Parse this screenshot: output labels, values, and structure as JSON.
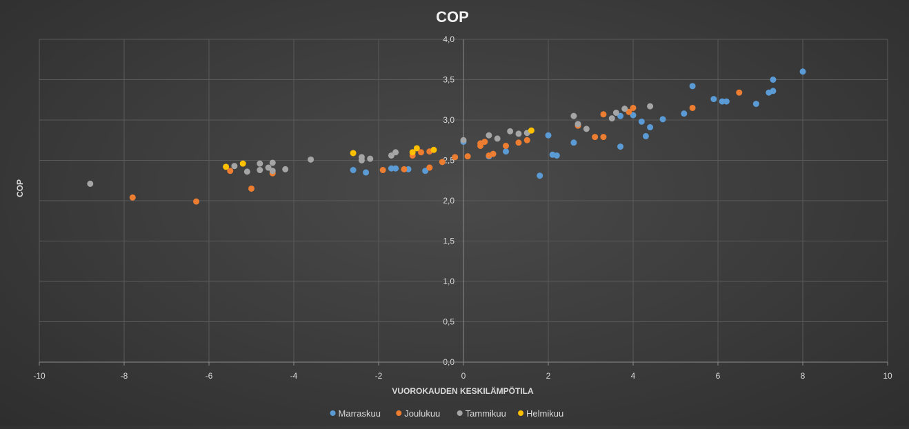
{
  "chart_data": {
    "type": "scatter",
    "title": "COP",
    "xlabel": "VUOROKAUDEN KESKILÄMPÖTILA",
    "ylabel": "COP",
    "xlim": [
      -10,
      10
    ],
    "ylim": [
      0,
      4
    ],
    "x_ticks": [
      "-10",
      "-8",
      "-6",
      "-4",
      "-2",
      "0",
      "2",
      "4",
      "6",
      "8",
      "10"
    ],
    "y_ticks": [
      "0,0",
      "0,5",
      "1,0",
      "1,5",
      "2,0",
      "2,5",
      "3,0",
      "3,5",
      "4,0"
    ],
    "grid": true,
    "legend_position": "bottom",
    "series": [
      {
        "name": "Marraskuu",
        "color": "#5b9bd5",
        "points": [
          [
            -2.6,
            2.38
          ],
          [
            -2.3,
            2.35
          ],
          [
            -1.7,
            2.4
          ],
          [
            -1.6,
            2.4
          ],
          [
            -1.3,
            2.39
          ],
          [
            -0.9,
            2.37
          ],
          [
            0.0,
            2.73
          ],
          [
            0.6,
            2.55
          ],
          [
            1.0,
            2.61
          ],
          [
            1.8,
            2.31
          ],
          [
            2.0,
            2.81
          ],
          [
            2.1,
            2.57
          ],
          [
            2.2,
            2.56
          ],
          [
            2.6,
            2.72
          ],
          [
            3.7,
            3.05
          ],
          [
            3.7,
            2.67
          ],
          [
            4.0,
            3.06
          ],
          [
            4.2,
            2.98
          ],
          [
            4.3,
            2.8
          ],
          [
            4.4,
            2.91
          ],
          [
            4.7,
            3.01
          ],
          [
            5.2,
            3.08
          ],
          [
            5.4,
            3.42
          ],
          [
            5.9,
            3.26
          ],
          [
            6.1,
            3.23
          ],
          [
            6.2,
            3.23
          ],
          [
            6.9,
            3.2
          ],
          [
            7.2,
            3.34
          ],
          [
            7.3,
            3.36
          ],
          [
            7.3,
            3.5
          ],
          [
            8.0,
            3.6
          ]
        ]
      },
      {
        "name": "Joulukuu",
        "color": "#ed7d31",
        "points": [
          [
            -7.8,
            2.04
          ],
          [
            -6.3,
            1.99
          ],
          [
            -5.5,
            2.37
          ],
          [
            -5.0,
            2.15
          ],
          [
            -4.5,
            2.34
          ],
          [
            -1.9,
            2.38
          ],
          [
            -1.4,
            2.39
          ],
          [
            -1.2,
            2.56
          ],
          [
            -1.0,
            2.6
          ],
          [
            -0.8,
            2.41
          ],
          [
            -0.8,
            2.61
          ],
          [
            -0.5,
            2.48
          ],
          [
            -0.2,
            2.54
          ],
          [
            0.1,
            2.55
          ],
          [
            0.4,
            2.68
          ],
          [
            0.4,
            2.71
          ],
          [
            0.5,
            2.73
          ],
          [
            0.6,
            2.56
          ],
          [
            0.7,
            2.58
          ],
          [
            1.0,
            2.68
          ],
          [
            1.3,
            2.72
          ],
          [
            1.5,
            2.75
          ],
          [
            2.7,
            2.93
          ],
          [
            3.1,
            2.79
          ],
          [
            3.3,
            2.79
          ],
          [
            3.3,
            3.07
          ],
          [
            3.9,
            3.1
          ],
          [
            4.0,
            3.15
          ],
          [
            5.4,
            3.15
          ],
          [
            6.5,
            3.34
          ]
        ]
      },
      {
        "name": "Tammikuu",
        "color": "#a5a5a5",
        "points": [
          [
            -8.8,
            2.21
          ],
          [
            -5.4,
            2.43
          ],
          [
            -5.1,
            2.36
          ],
          [
            -4.8,
            2.46
          ],
          [
            -4.8,
            2.38
          ],
          [
            -4.6,
            2.41
          ],
          [
            -4.5,
            2.47
          ],
          [
            -4.5,
            2.37
          ],
          [
            -4.2,
            2.39
          ],
          [
            -3.6,
            2.51
          ],
          [
            -2.4,
            2.5
          ],
          [
            -2.4,
            2.54
          ],
          [
            -2.2,
            2.52
          ],
          [
            -1.7,
            2.56
          ],
          [
            -1.6,
            2.6
          ],
          [
            0.0,
            2.75
          ],
          [
            0.6,
            2.81
          ],
          [
            0.8,
            2.77
          ],
          [
            1.1,
            2.86
          ],
          [
            1.3,
            2.83
          ],
          [
            1.5,
            2.84
          ],
          [
            2.6,
            3.05
          ],
          [
            2.7,
            2.95
          ],
          [
            2.9,
            2.89
          ],
          [
            3.5,
            3.02
          ],
          [
            3.6,
            3.09
          ],
          [
            3.8,
            3.14
          ],
          [
            4.4,
            3.17
          ]
        ]
      },
      {
        "name": "Helmikuu",
        "color": "#ffc000",
        "points": [
          [
            -5.6,
            2.42
          ],
          [
            -5.2,
            2.46
          ],
          [
            -2.6,
            2.59
          ],
          [
            -1.2,
            2.6
          ],
          [
            -1.1,
            2.65
          ],
          [
            -0.7,
            2.63
          ],
          [
            1.6,
            2.87
          ]
        ]
      }
    ]
  }
}
